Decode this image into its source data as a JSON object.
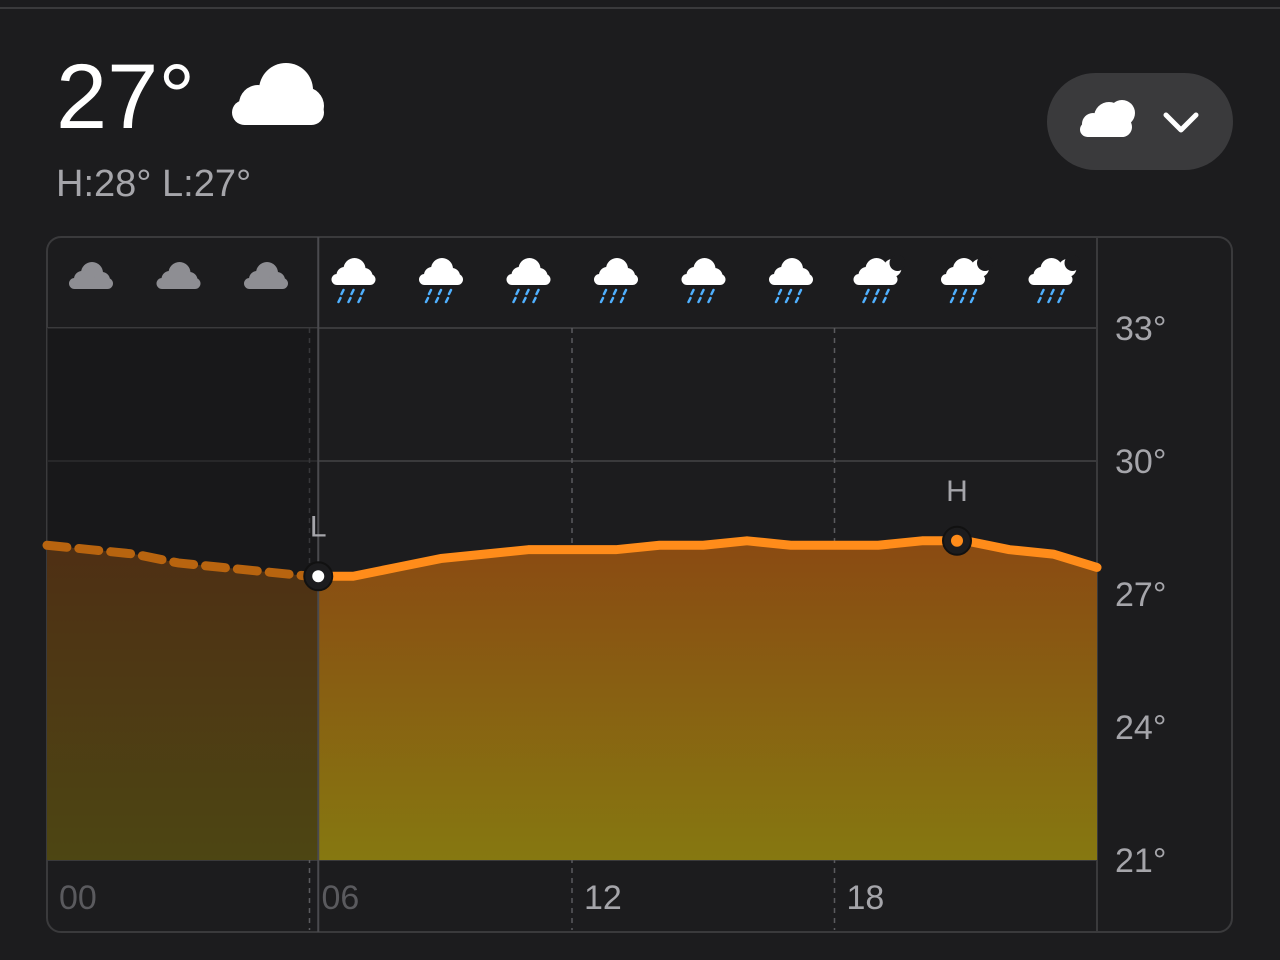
{
  "header": {
    "temperature": "27°",
    "high_low": "H:28° L:27°"
  },
  "chart_data": {
    "type": "area",
    "x": [
      0,
      1,
      2,
      3,
      4,
      5,
      6,
      7,
      8,
      9,
      10,
      11,
      12,
      13,
      14,
      15,
      16,
      17,
      18,
      19,
      20,
      21,
      22,
      23,
      24
    ],
    "values": [
      28.1,
      28.0,
      27.9,
      27.7,
      27.6,
      27.5,
      27.4,
      27.4,
      27.6,
      27.8,
      27.9,
      28.0,
      28.0,
      28.0,
      28.1,
      28.1,
      28.2,
      28.1,
      28.1,
      28.1,
      28.2,
      28.2,
      28.0,
      27.9,
      27.6
    ],
    "color": "#ff8c1a",
    "xlim": [
      0,
      24
    ],
    "ylim": [
      21,
      33
    ],
    "xticks": [
      {
        "value": 0,
        "label": "00"
      },
      {
        "value": 6,
        "label": "06"
      },
      {
        "value": 12,
        "label": "12"
      },
      {
        "value": 18,
        "label": "18"
      }
    ],
    "yticks": [
      {
        "value": 21,
        "label": "21°"
      },
      {
        "value": 24,
        "label": "24°"
      },
      {
        "value": 27,
        "label": "27°"
      },
      {
        "value": 30,
        "label": "30°"
      },
      {
        "value": 33,
        "label": "33°"
      }
    ],
    "grid": true,
    "now": 6.2,
    "annotations": [
      {
        "label": "L",
        "x": 6.2,
        "value": 27.4
      },
      {
        "label": "H",
        "x": 20.8,
        "value": 28.2
      }
    ]
  }
}
